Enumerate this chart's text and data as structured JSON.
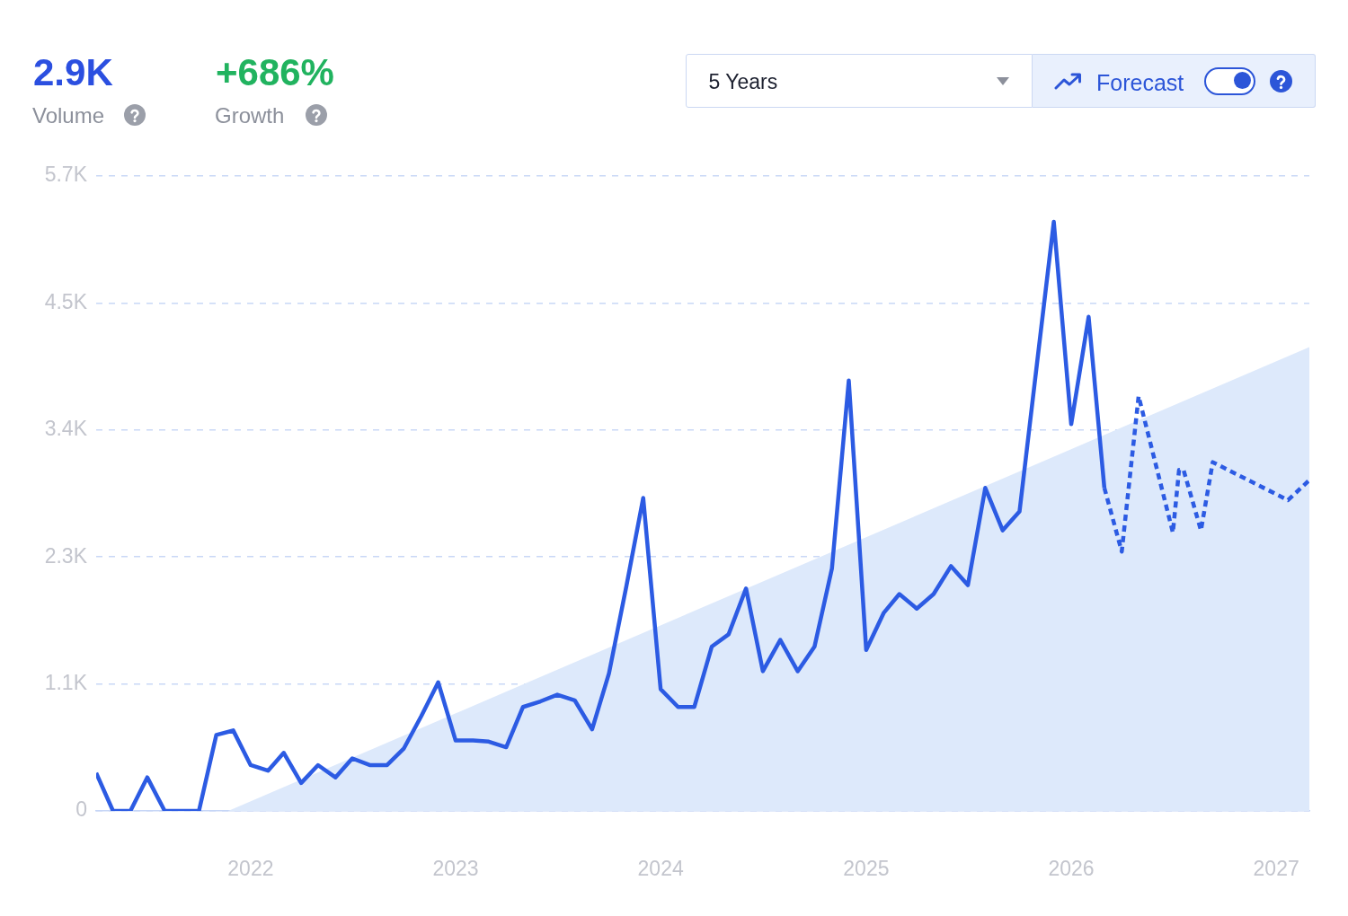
{
  "chart_data": {
    "type": "line",
    "annotations": [
      "2.9K",
      "Volume",
      "+686%",
      "Growth",
      "5 Years",
      "Forecast"
    ],
    "series": [
      {
        "type": "area",
        "color": "#dde9fb",
        "x": [
          "2021-11-22",
          "2027-03"
        ],
        "values": [
          0,
          4150
        ]
      },
      {
        "color": "#2c5be3",
        "line_style": "solid",
        "x": [
          "2021-04",
          "2021-05",
          "2021-06",
          "2021-07",
          "2021-08",
          "2021-09",
          "2021-10",
          "2021-11",
          "2021-12",
          "2022-01",
          "2022-02",
          "2022-03",
          "2022-04",
          "2022-05",
          "2022-06",
          "2022-07",
          "2022-08",
          "2022-09",
          "2022-10",
          "2022-11",
          "2022-12",
          "2023-01",
          "2023-02",
          "2023-03",
          "2023-04",
          "2023-05",
          "2023-06",
          "2023-07",
          "2023-08",
          "2023-09",
          "2023-10",
          "2023-11",
          "2023-12",
          "2024-01",
          "2024-02",
          "2024-03",
          "2024-04",
          "2024-05",
          "2024-06",
          "2024-07",
          "2024-08",
          "2024-09",
          "2024-10",
          "2024-11",
          "2024-12",
          "2025-01",
          "2025-02",
          "2025-03",
          "2025-04",
          "2025-05",
          "2025-06",
          "2025-07",
          "2025-08",
          "2025-09",
          "2025-10",
          "2025-11",
          "2025-12",
          "2026-01",
          "2026-02",
          "2026-03"
        ],
        "values": [
          340,
          0,
          0,
          300,
          0,
          0,
          0,
          680,
          720,
          410,
          360,
          520,
          250,
          410,
          300,
          470,
          410,
          410,
          560,
          850,
          1150,
          630,
          630,
          620,
          570,
          930,
          980,
          1040,
          990,
          730,
          1230,
          2010,
          2800,
          1090,
          930,
          930,
          1470,
          1580,
          1990,
          1250,
          1530,
          1250,
          1470,
          2170,
          3850,
          1440,
          1770,
          1940,
          1810,
          1940,
          2190,
          2020,
          2890,
          2510,
          2680,
          4000,
          5270,
          3460,
          4420,
          2890
        ]
      },
      {
        "color": "#2c5be3",
        "line_style": "dashed",
        "x": [
          "2026-03",
          "2026-04",
          "2026-05",
          "2026-07",
          "2026-07-12",
          "2026-07-20",
          "2026-08-20",
          "2026-09-10",
          "2027-01-22",
          "2027-03"
        ],
        "values": [
          2890,
          2320,
          3710,
          2490,
          3050,
          3050,
          2510,
          3120,
          2780,
          2960
        ]
      }
    ],
    "xlim": [
      "2021-04",
      "2027-03"
    ],
    "xticks": [
      "2022",
      "2023",
      "2024",
      "2025",
      "2026",
      "2027"
    ],
    "ylim": [
      0,
      5680
    ],
    "yticks": [
      {
        "value": 0,
        "label": "0"
      },
      {
        "value": 1136,
        "label": "1.1K"
      },
      {
        "value": 2272,
        "label": "2.3K"
      },
      {
        "value": 3408,
        "label": "3.4K"
      },
      {
        "value": 4544,
        "label": "4.5K"
      },
      {
        "value": 5680,
        "label": "5.7K"
      }
    ],
    "grid": "y"
  }
}
